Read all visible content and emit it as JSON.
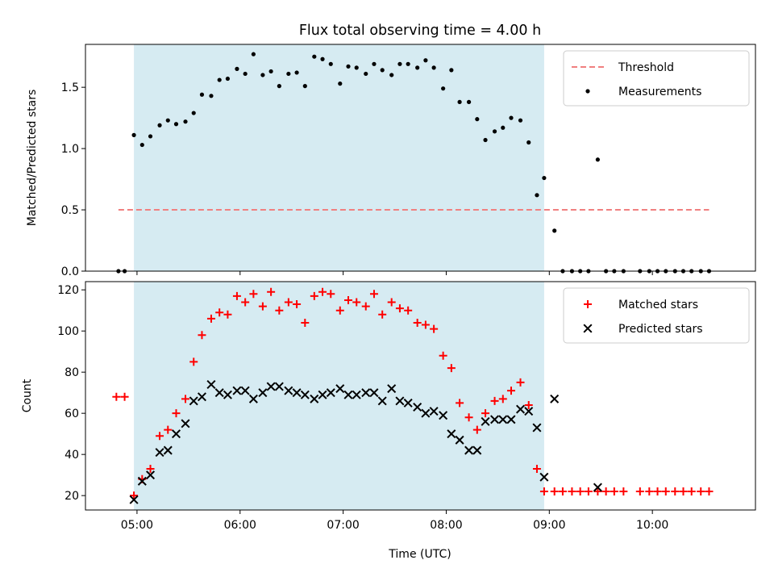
{
  "chart_data": [
    {
      "type": "scatter",
      "title": "Flux total observing time = 4.00 h",
      "xlabel": "",
      "ylabel": "Matched/Predicted stars",
      "xlim": [
        4.5,
        11.0
      ],
      "ylim": [
        0,
        1.85
      ],
      "yticks": [
        0.0,
        0.5,
        1.0,
        1.5
      ],
      "ytick_labels": [
        "0.0",
        "0.5",
        "1.0",
        "1.5"
      ],
      "xticks": [
        5,
        6,
        7,
        8,
        9,
        10
      ],
      "shaded_span": [
        4.97,
        8.95
      ],
      "threshold": {
        "name": "Threshold",
        "value": 0.5,
        "x": [
          4.82,
          10.55
        ],
        "color": "#f08080",
        "style": "dashed"
      },
      "legend": {
        "position": "top-right",
        "entries": [
          "Threshold",
          "Measurements"
        ]
      },
      "series": [
        {
          "name": "Measurements",
          "color": "#000000",
          "marker": "dot",
          "x": [
            4.82,
            4.88,
            4.97,
            5.05,
            5.13,
            5.22,
            5.3,
            5.38,
            5.47,
            5.55,
            5.63,
            5.72,
            5.8,
            5.88,
            5.97,
            6.05,
            6.13,
            6.22,
            6.3,
            6.38,
            6.47,
            6.55,
            6.63,
            6.72,
            6.8,
            6.88,
            6.97,
            7.05,
            7.13,
            7.22,
            7.3,
            7.38,
            7.47,
            7.55,
            7.63,
            7.72,
            7.8,
            7.88,
            7.97,
            8.05,
            8.13,
            8.22,
            8.3,
            8.38,
            8.47,
            8.55,
            8.63,
            8.72,
            8.8,
            8.88,
            8.95,
            9.05,
            9.13,
            9.22,
            9.3,
            9.38,
            9.47,
            9.55,
            9.63,
            9.72,
            9.88,
            9.97,
            10.05,
            10.13,
            10.22,
            10.3,
            10.38,
            10.47,
            10.55
          ],
          "y": [
            0.0,
            0.0,
            1.11,
            1.03,
            1.1,
            1.19,
            1.23,
            1.2,
            1.22,
            1.29,
            1.44,
            1.43,
            1.56,
            1.57,
            1.65,
            1.61,
            1.77,
            1.6,
            1.63,
            1.51,
            1.61,
            1.62,
            1.51,
            1.75,
            1.73,
            1.69,
            1.53,
            1.67,
            1.66,
            1.61,
            1.69,
            1.64,
            1.6,
            1.69,
            1.69,
            1.66,
            1.72,
            1.66,
            1.49,
            1.64,
            1.38,
            1.38,
            1.24,
            1.07,
            1.14,
            1.17,
            1.25,
            1.23,
            1.05,
            0.62,
            0.76,
            0.33,
            0.0,
            0.0,
            0.0,
            0.0,
            0.91,
            0.0,
            0.0,
            0.0,
            0.0,
            0.0,
            0.0,
            0.0,
            0.0,
            0.0,
            0.0,
            0.0,
            0.0
          ]
        }
      ]
    },
    {
      "type": "scatter",
      "title": "",
      "xlabel": "Time (UTC)",
      "ylabel": "Count",
      "xlim": [
        4.5,
        11.0
      ],
      "ylim": [
        13,
        124
      ],
      "yticks": [
        20,
        40,
        60,
        80,
        100,
        120
      ],
      "ytick_labels": [
        "20",
        "40",
        "60",
        "80",
        "100",
        "120"
      ],
      "xticks": [
        5,
        6,
        7,
        8,
        9,
        10
      ],
      "xtick_labels": [
        "05:00",
        "06:00",
        "07:00",
        "08:00",
        "09:00",
        "10:00"
      ],
      "shaded_span": [
        4.97,
        8.95
      ],
      "legend": {
        "position": "top-right",
        "entries": [
          "Matched stars",
          "Predicted stars"
        ]
      },
      "series": [
        {
          "name": "Matched stars",
          "color": "#ff0000",
          "marker": "plus",
          "x": [
            4.8,
            4.88,
            4.97,
            5.05,
            5.13,
            5.22,
            5.3,
            5.38,
            5.47,
            5.55,
            5.63,
            5.72,
            5.8,
            5.88,
            5.97,
            6.05,
            6.13,
            6.22,
            6.3,
            6.38,
            6.47,
            6.55,
            6.63,
            6.72,
            6.8,
            6.88,
            6.97,
            7.05,
            7.13,
            7.22,
            7.3,
            7.38,
            7.47,
            7.55,
            7.63,
            7.72,
            7.8,
            7.88,
            7.97,
            8.05,
            8.13,
            8.22,
            8.3,
            8.38,
            8.47,
            8.55,
            8.63,
            8.72,
            8.8,
            8.88,
            8.95,
            9.05,
            9.13,
            9.22,
            9.3,
            9.38,
            9.47,
            9.55,
            9.63,
            9.72,
            9.88,
            9.97,
            10.05,
            10.13,
            10.22,
            10.3,
            10.38,
            10.47,
            10.55
          ],
          "y": [
            68,
            68,
            20,
            28,
            33,
            49,
            52,
            60,
            67,
            85,
            98,
            106,
            109,
            108,
            117,
            114,
            118,
            112,
            119,
            110,
            114,
            113,
            104,
            117,
            119,
            118,
            110,
            115,
            114,
            112,
            118,
            108,
            114,
            111,
            110,
            104,
            103,
            101,
            88,
            82,
            65,
            58,
            52,
            60,
            66,
            67,
            71,
            75,
            64,
            33,
            22,
            22,
            22,
            22,
            22,
            22,
            22,
            22,
            22,
            22,
            22,
            22,
            22,
            22,
            22,
            22,
            22,
            22,
            22
          ]
        },
        {
          "name": "Predicted stars",
          "color": "#000000",
          "marker": "x",
          "x": [
            4.97,
            5.05,
            5.13,
            5.22,
            5.3,
            5.38,
            5.47,
            5.55,
            5.63,
            5.72,
            5.8,
            5.88,
            5.97,
            6.05,
            6.13,
            6.22,
            6.3,
            6.38,
            6.47,
            6.55,
            6.63,
            6.72,
            6.8,
            6.88,
            6.97,
            7.05,
            7.13,
            7.22,
            7.3,
            7.38,
            7.47,
            7.55,
            7.63,
            7.72,
            7.8,
            7.88,
            7.97,
            8.05,
            8.13,
            8.22,
            8.3,
            8.38,
            8.47,
            8.55,
            8.63,
            8.72,
            8.8,
            8.88,
            8.95,
            9.05,
            9.47
          ],
          "y": [
            18,
            27,
            30,
            41,
            42,
            50,
            55,
            66,
            68,
            74,
            70,
            69,
            71,
            71,
            67,
            70,
            73,
            73,
            71,
            70,
            69,
            67,
            69,
            70,
            72,
            69,
            69,
            70,
            70,
            66,
            72,
            66,
            65,
            63,
            60,
            61,
            59,
            50,
            47,
            42,
            42,
            56,
            57,
            57,
            57,
            62,
            61,
            53,
            29,
            67,
            24
          ]
        }
      ]
    }
  ]
}
